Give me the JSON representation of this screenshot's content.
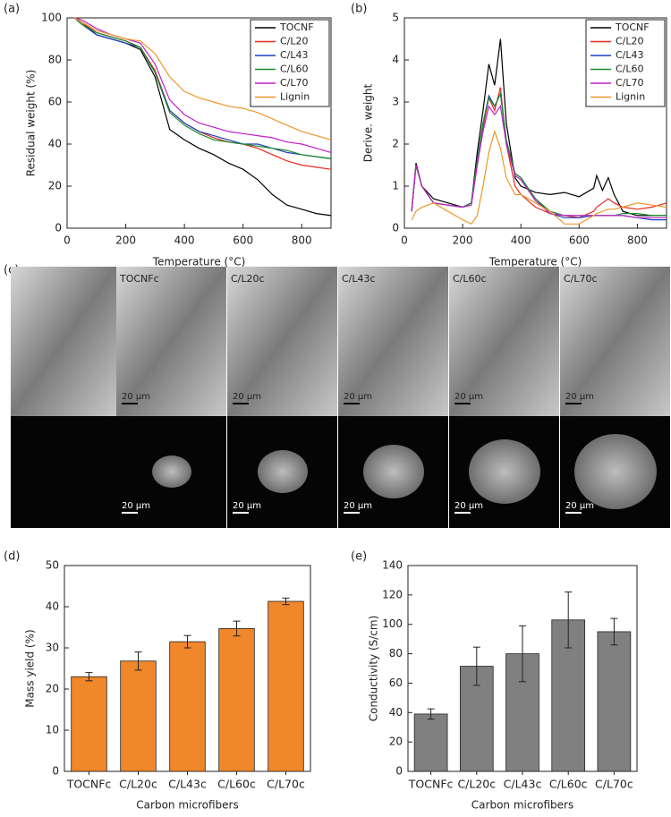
{
  "panel_labels": [
    "(a)",
    "(b)",
    "(c)",
    "(d)",
    "(e)"
  ],
  "chart_data": [
    {
      "type": "line",
      "x_label": "Temperature (°C)",
      "y_label": "Residual weight (%)",
      "xlim": [
        0,
        900
      ],
      "xticks": [
        0,
        200,
        400,
        600,
        800
      ],
      "ylim": [
        0,
        100
      ],
      "yticks": [
        0,
        20,
        40,
        60,
        80,
        100
      ],
      "legend": "top-right",
      "x": [
        25,
        50,
        100,
        150,
        200,
        250,
        300,
        350,
        400,
        450,
        500,
        550,
        600,
        650,
        700,
        750,
        800,
        850,
        900
      ],
      "series": [
        {
          "name": "TOCNF",
          "color": "#000000",
          "values": [
            100,
            98,
            92,
            90,
            88,
            85,
            72,
            47,
            42,
            38,
            35,
            31,
            28,
            23,
            16,
            11,
            9,
            7,
            6
          ]
        },
        {
          "name": "C/L20",
          "color": "#e8281e",
          "values": [
            100,
            98,
            93,
            91,
            89,
            86,
            75,
            56,
            50,
            46,
            43,
            41,
            40,
            38,
            35,
            32,
            30,
            29,
            28
          ]
        },
        {
          "name": "C/L43",
          "color": "#1f3fbf",
          "values": [
            100,
            97,
            92,
            90,
            88,
            86,
            74,
            56,
            50,
            46,
            44,
            42,
            40,
            40,
            38,
            36,
            35,
            34,
            33
          ]
        },
        {
          "name": "C/L60",
          "color": "#1a8c2a",
          "values": [
            100,
            97,
            93,
            91,
            89,
            86,
            74,
            55,
            49,
            45,
            42,
            41,
            40,
            39,
            38,
            37,
            35,
            34,
            33
          ]
        },
        {
          "name": "C/L70",
          "color": "#c020c8",
          "values": [
            100,
            99,
            95,
            92,
            90,
            88,
            78,
            61,
            54,
            50,
            48,
            46,
            45,
            44,
            43,
            41,
            40,
            38,
            36
          ]
        },
        {
          "name": "Lignin",
          "color": "#f0962a",
          "values": [
            100,
            98,
            94,
            92,
            90,
            89,
            83,
            72,
            65,
            62,
            60,
            58,
            57,
            55,
            52,
            49,
            46,
            44,
            42
          ]
        }
      ]
    },
    {
      "type": "line",
      "x_label": "Temperature (°C)",
      "y_label": "Derive. weight",
      "xlim": [
        0,
        900
      ],
      "xticks": [
        0,
        200,
        400,
        600,
        800
      ],
      "ylim": [
        0,
        5
      ],
      "yticks": [
        0,
        1,
        2,
        3,
        4,
        5
      ],
      "legend": "top-right",
      "x": [
        25,
        40,
        60,
        100,
        150,
        200,
        230,
        250,
        270,
        290,
        310,
        330,
        350,
        380,
        400,
        450,
        500,
        550,
        600,
        650,
        660,
        680,
        700,
        720,
        750,
        800,
        850,
        900
      ],
      "series": [
        {
          "name": "TOCNF",
          "color": "#000000",
          "values": [
            0.4,
            1.55,
            1.0,
            0.7,
            0.6,
            0.5,
            0.6,
            1.8,
            2.8,
            3.9,
            3.4,
            4.5,
            2.5,
            1.2,
            1.0,
            0.85,
            0.8,
            0.85,
            0.75,
            0.95,
            1.25,
            0.9,
            1.2,
            0.8,
            0.4,
            0.3,
            0.3,
            0.3
          ]
        },
        {
          "name": "C/L20",
          "color": "#e8281e",
          "values": [
            0.4,
            1.5,
            1.0,
            0.6,
            0.55,
            0.5,
            0.6,
            1.5,
            2.4,
            3.1,
            2.8,
            3.35,
            2.0,
            1.0,
            0.8,
            0.5,
            0.35,
            0.3,
            0.25,
            0.4,
            0.5,
            0.6,
            0.7,
            0.6,
            0.5,
            0.45,
            0.5,
            0.6
          ]
        },
        {
          "name": "C/L43",
          "color": "#1f3fbf",
          "values": [
            0.4,
            1.5,
            1.0,
            0.6,
            0.55,
            0.5,
            0.6,
            1.6,
            2.5,
            3.15,
            2.9,
            3.2,
            2.1,
            1.3,
            1.2,
            0.7,
            0.35,
            0.25,
            0.25,
            0.3,
            0.3,
            0.3,
            0.3,
            0.3,
            0.3,
            0.25,
            0.2,
            0.2
          ]
        },
        {
          "name": "C/L60",
          "color": "#1a8c2a",
          "values": [
            0.4,
            1.5,
            1.0,
            0.6,
            0.55,
            0.5,
            0.6,
            1.6,
            2.5,
            3.1,
            2.9,
            3.2,
            2.1,
            1.3,
            1.2,
            0.7,
            0.4,
            0.3,
            0.3,
            0.3,
            0.3,
            0.3,
            0.3,
            0.3,
            0.35,
            0.35,
            0.3,
            0.3
          ]
        },
        {
          "name": "C/L70",
          "color": "#c020c8",
          "values": [
            0.4,
            1.5,
            1.0,
            0.6,
            0.55,
            0.5,
            0.55,
            1.5,
            2.3,
            2.9,
            2.7,
            2.9,
            2.0,
            1.25,
            1.15,
            0.65,
            0.35,
            0.3,
            0.3,
            0.3,
            0.3,
            0.3,
            0.3,
            0.3,
            0.3,
            0.25,
            0.25,
            0.25
          ]
        },
        {
          "name": "Lignin",
          "color": "#f0962a",
          "values": [
            0.2,
            0.4,
            0.5,
            0.6,
            0.4,
            0.2,
            0.1,
            0.3,
            1.0,
            1.8,
            2.3,
            1.9,
            1.2,
            0.8,
            0.8,
            0.6,
            0.4,
            0.1,
            0.1,
            0.3,
            0.35,
            0.4,
            0.45,
            0.45,
            0.5,
            0.6,
            0.55,
            0.5
          ]
        }
      ]
    },
    {
      "type": "bar",
      "x_label": "Carbon microfibers",
      "y_label": "Mass yield (%)",
      "ylim": [
        0,
        50
      ],
      "yticks": [
        0,
        10,
        20,
        30,
        40,
        50
      ],
      "color": "#f0872a",
      "categories": [
        "TOCNFc",
        "C/L20c",
        "C/L43c",
        "C/L60c",
        "C/L70c"
      ],
      "values": [
        23,
        26.8,
        31.5,
        34.7,
        41.3
      ],
      "errors": [
        1,
        2.2,
        1.5,
        1.8,
        0.8
      ]
    },
    {
      "type": "bar",
      "x_label": "Carbon microfibers",
      "y_label": "Conductivity (S/cm)",
      "ylim": [
        0,
        140
      ],
      "yticks": [
        0,
        20,
        40,
        60,
        80,
        100,
        120,
        140
      ],
      "color": "#808080",
      "categories": [
        "TOCNFc",
        "C/L20c",
        "C/L43c",
        "C/L60c",
        "C/L70c"
      ],
      "values": [
        39,
        71.5,
        80,
        103,
        95
      ],
      "errors": [
        3.5,
        13,
        19,
        19,
        9
      ]
    }
  ],
  "micrographs": {
    "labels": [
      "TOCNFc",
      "C/L20c",
      "C/L43c",
      "C/L60c",
      "C/L70c"
    ],
    "scale_bar": "20 µm"
  }
}
